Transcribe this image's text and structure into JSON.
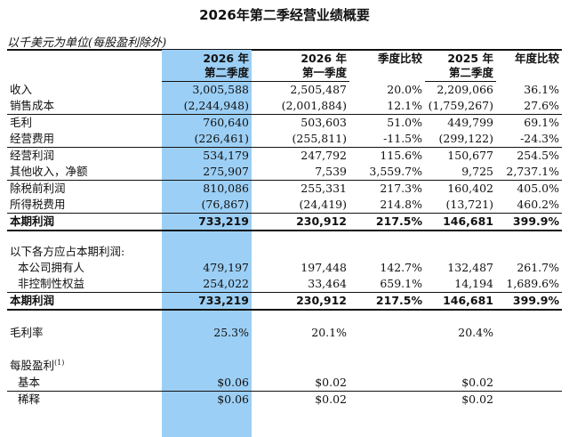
{
  "title": "2026年第二季经营业绩概要",
  "units_note": "以千美元为单位(每股盈利除外)",
  "header": {
    "c1": [
      "2026 年",
      "第二季度"
    ],
    "c2": [
      "2026 年",
      "第一季度"
    ],
    "c3": [
      "季度比较",
      ""
    ],
    "c4": [
      "2025 年",
      "第二季度"
    ],
    "c5": [
      "年度比较",
      ""
    ]
  },
  "rows": [
    {
      "label": "收入",
      "v": [
        "3,005,588",
        "2,505,487",
        "20.0%",
        "2,209,066",
        "36.1%"
      ]
    },
    {
      "label": "销售成本",
      "v": [
        "(2,244,948)",
        "(2,001,884)",
        "12.1%",
        "(1,759,267)",
        "27.6%"
      ]
    },
    {
      "label": "毛利",
      "v": [
        "760,640",
        "503,603",
        "51.0%",
        "449,799",
        "69.1%"
      ]
    },
    {
      "label": "经营费用",
      "v": [
        "(226,461)",
        "(255,811)",
        "-11.5%",
        "(299,122)",
        "-24.3%"
      ]
    },
    {
      "label": "经营利润",
      "v": [
        "534,179",
        "247,792",
        "115.6%",
        "150,677",
        "254.5%"
      ]
    },
    {
      "label": "其他收入，净额",
      "v": [
        "275,907",
        "7,539",
        "3,559.7%",
        "9,725",
        "2,737.1%"
      ]
    },
    {
      "label": "除税前利润",
      "v": [
        "810,086",
        "255,331",
        "217.3%",
        "160,402",
        "405.0%"
      ]
    },
    {
      "label": "所得税费用",
      "v": [
        "(76,867)",
        "(24,419)",
        "214.8%",
        "(13,721)",
        "460.2%"
      ]
    },
    {
      "label": "本期利润",
      "v": [
        "733,219",
        "230,912",
        "217.5%",
        "146,681",
        "399.9%"
      ]
    }
  ],
  "attrib": {
    "heading": "以下各方应占本期利润:",
    "rows": [
      {
        "label": "本公司拥有人",
        "v": [
          "479,197",
          "197,448",
          "142.7%",
          "132,487",
          "261.7%"
        ]
      },
      {
        "label": "非控制性权益",
        "v": [
          "254,022",
          "33,464",
          "659.1%",
          "14,194",
          "1,689.6%"
        ]
      },
      {
        "label": "本期利润",
        "v": [
          "733,219",
          "230,912",
          "217.5%",
          "146,681",
          "399.9%"
        ]
      }
    ]
  },
  "gross_margin": {
    "label": "毛利率",
    "v": [
      "25.3%",
      "20.1%",
      "",
      "20.4%",
      ""
    ]
  },
  "eps": {
    "heading": "每股盈利",
    "footnote": "(1)",
    "rows": [
      {
        "label": "基本",
        "v": [
          "$0.06",
          "$0.02",
          "",
          "$0.02",
          ""
        ]
      },
      {
        "label": "稀释",
        "v": [
          "$0.06",
          "$0.02",
          "",
          "$0.02",
          ""
        ]
      }
    ]
  }
}
